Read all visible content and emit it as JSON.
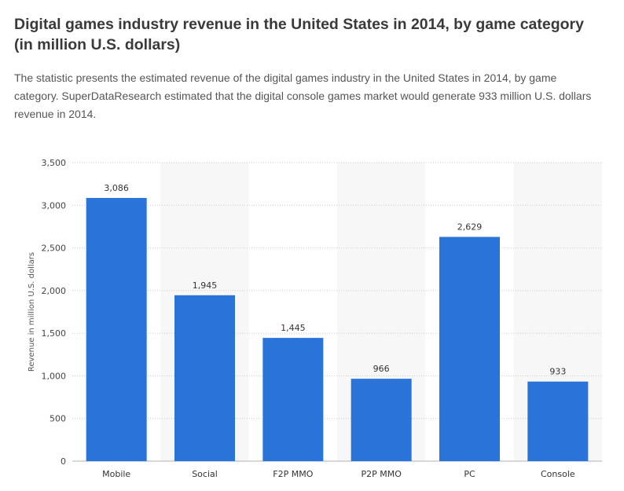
{
  "header": {
    "title": "Digital games industry revenue in the United States in 2014, by game category (in million U.S. dollars)",
    "description": "The statistic presents the estimated revenue of the digital games industry in the United States in 2014, by game category. SuperDataResearch estimated that the digital console games market would generate 933 million U.S. dollars revenue in 2014."
  },
  "colors": {
    "bar": "#2a74d9",
    "band": "#f7f7f7",
    "grid": "#c8c8c8",
    "text": "#333333"
  },
  "chart_data": {
    "type": "bar",
    "categories": [
      "Mobile",
      "Social",
      "F2P MMO",
      "P2P MMO",
      "PC",
      "Console"
    ],
    "values": [
      3086,
      1945,
      1445,
      966,
      2629,
      933
    ],
    "data_labels": [
      "3,086",
      "1,945",
      "1,445",
      "966",
      "2,629",
      "933"
    ],
    "title": "",
    "xlabel": "",
    "ylabel": "Revenue in million U.S. dollars",
    "ylim": [
      0,
      3500
    ],
    "yticks": [
      0,
      500,
      1000,
      1500,
      2000,
      2500,
      3000,
      3500
    ],
    "ytick_labels": [
      "0",
      "500",
      "1,000",
      "1,500",
      "2,000",
      "2,500",
      "3,000",
      "3,500"
    ],
    "grid": true,
    "legend": "none"
  }
}
